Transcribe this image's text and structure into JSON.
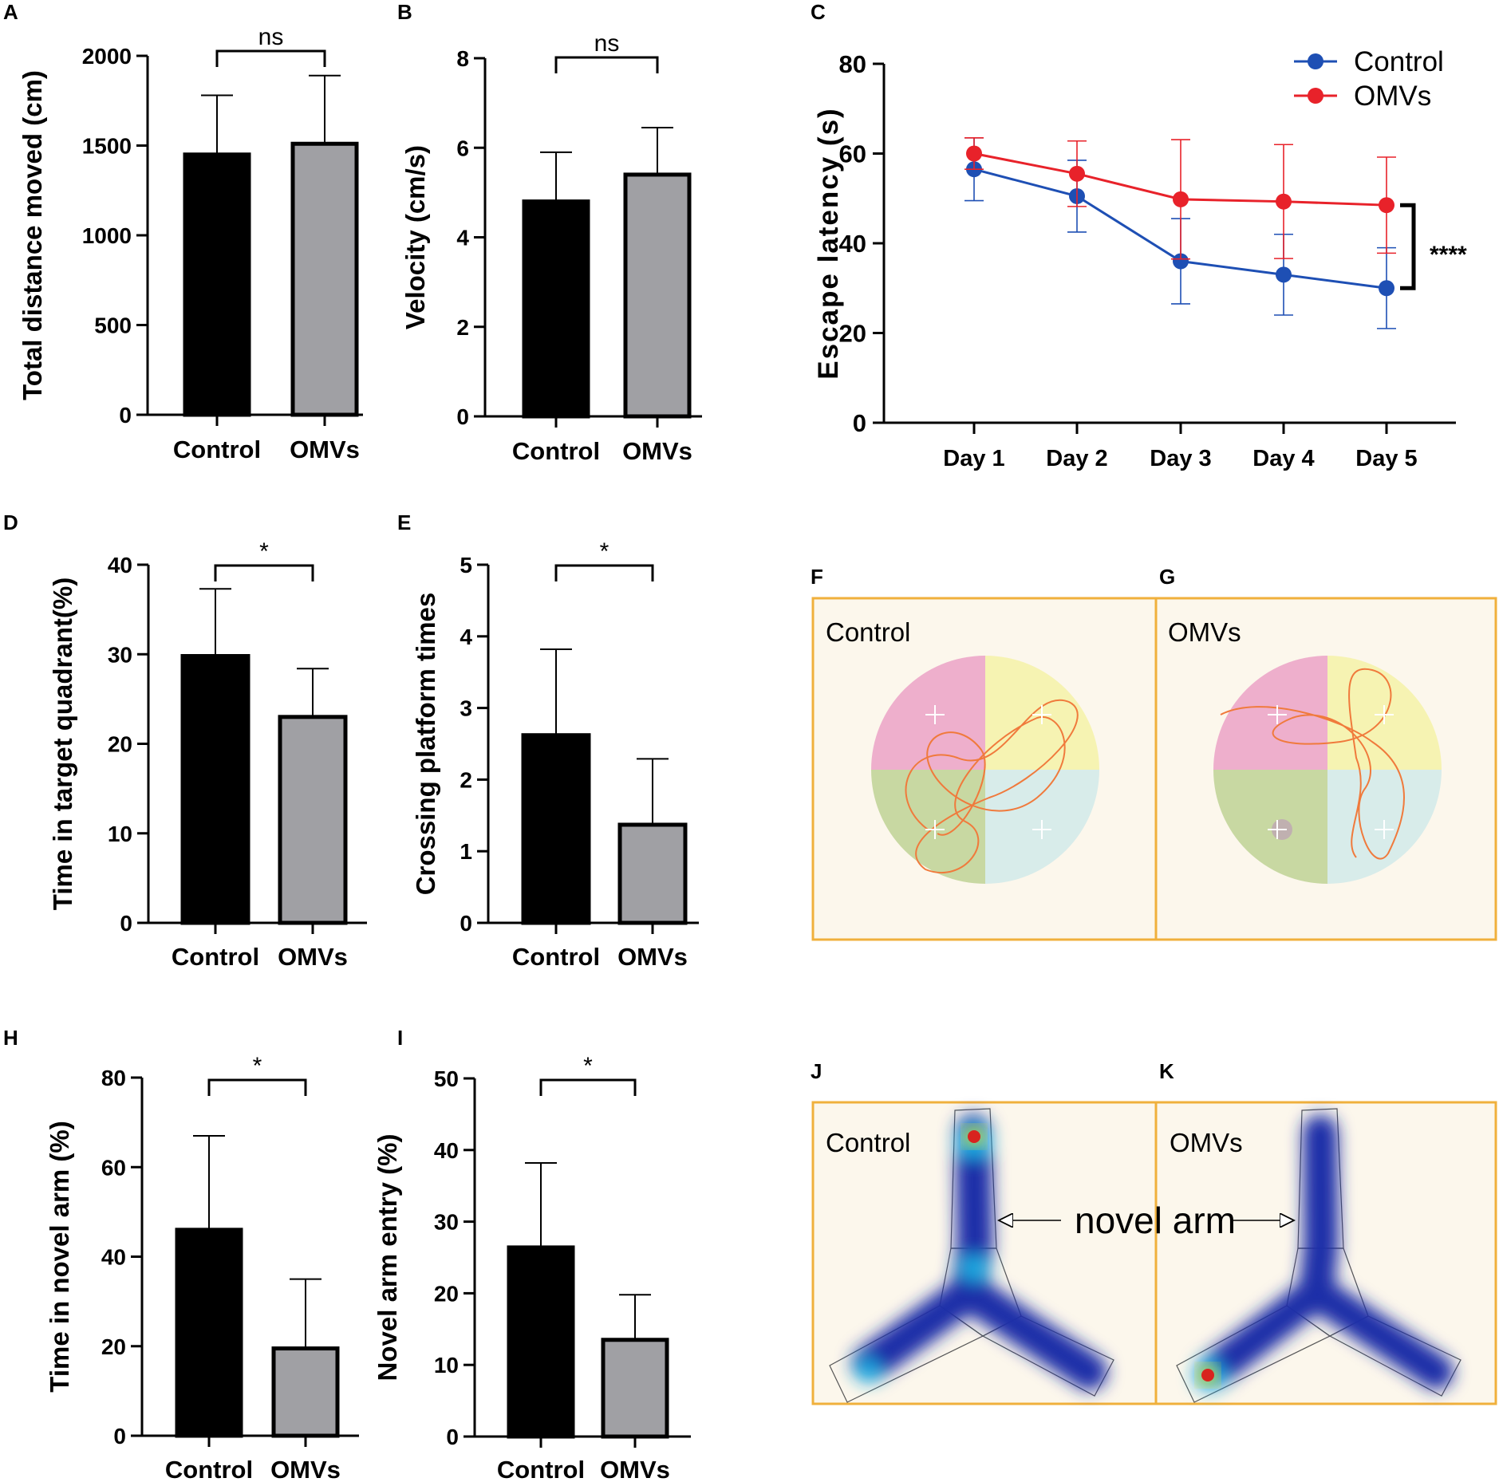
{
  "panel_labels": {
    "A": "A",
    "B": "B",
    "C": "C",
    "D": "D",
    "E": "E",
    "F": "F",
    "G": "G",
    "H": "H",
    "I": "I",
    "J": "J",
    "K": "K"
  },
  "chart_data": [
    {
      "id": "A",
      "type": "bar",
      "categories": [
        "Control",
        "OMVs"
      ],
      "values": [
        1450,
        1510
      ],
      "errors": [
        330,
        380
      ],
      "colors": [
        "#000000",
        "#a0a0a4"
      ],
      "ylabel": "Total distance moved (cm)",
      "ylim": [
        0,
        2000
      ],
      "yticks": [
        0,
        500,
        1000,
        1500,
        2000
      ],
      "significance": "ns"
    },
    {
      "id": "B",
      "type": "bar",
      "categories": [
        "Control",
        "OMVs"
      ],
      "values": [
        4.8,
        5.4
      ],
      "errors": [
        1.1,
        1.05
      ],
      "colors": [
        "#000000",
        "#a0a0a4"
      ],
      "ylabel": "Velocity (cm/s)",
      "ylim": [
        0,
        8
      ],
      "yticks": [
        0,
        2,
        4,
        6,
        8
      ],
      "significance": "ns"
    },
    {
      "id": "C",
      "type": "line",
      "x": [
        "Day 1",
        "Day 2",
        "Day 3",
        "Day 4",
        "Day 5"
      ],
      "series": [
        {
          "name": "Control",
          "color": "#1e4fb4",
          "values": [
            56.5,
            50.5,
            36,
            33,
            30
          ],
          "errors": [
            7,
            8,
            9.5,
            9,
            9
          ]
        },
        {
          "name": "OMVs",
          "color": "#e8222a",
          "values": [
            60,
            55.5,
            49.8,
            49.3,
            48.5
          ],
          "errors": [
            3.5,
            7.3,
            13.3,
            12.7,
            10.7
          ]
        }
      ],
      "ylabel": "Escape latency (s)",
      "ylim": [
        0,
        80
      ],
      "yticks": [
        0,
        20,
        40,
        60,
        80
      ],
      "significance": "****",
      "legend": "top-right"
    },
    {
      "id": "D",
      "type": "bar",
      "categories": [
        "Control",
        "OMVs"
      ],
      "values": [
        29.8,
        23
      ],
      "errors": [
        7.5,
        5.4
      ],
      "colors": [
        "#000000",
        "#a0a0a4"
      ],
      "ylabel": "Time in target quadrant(%)",
      "ylim": [
        0,
        40
      ],
      "yticks": [
        0,
        10,
        20,
        30,
        40
      ],
      "significance": "*"
    },
    {
      "id": "E",
      "type": "bar",
      "categories": [
        "Control",
        "OMVs"
      ],
      "values": [
        2.62,
        1.37
      ],
      "errors": [
        1.2,
        0.92
      ],
      "colors": [
        "#000000",
        "#a0a0a4"
      ],
      "ylabel": "Crossing platform times",
      "ylim": [
        0,
        5
      ],
      "yticks": [
        0,
        1,
        2,
        3,
        4,
        5
      ],
      "significance": "*"
    },
    {
      "id": "H",
      "type": "bar",
      "categories": [
        "Control",
        "OMVs"
      ],
      "values": [
        46,
        19.5
      ],
      "errors": [
        21,
        15.5
      ],
      "colors": [
        "#000000",
        "#a0a0a4"
      ],
      "ylabel": "Time in novel arm  (%)",
      "ylim": [
        0,
        80
      ],
      "yticks": [
        0,
        20,
        40,
        60,
        80
      ],
      "significance": "*"
    },
    {
      "id": "I",
      "type": "bar",
      "categories": [
        "Control",
        "OMVs"
      ],
      "values": [
        26.4,
        13.5
      ],
      "errors": [
        11.8,
        6.3
      ],
      "colors": [
        "#000000",
        "#a0a0a4"
      ],
      "ylabel": "Novel arm entry (%)",
      "ylim": [
        0,
        50
      ],
      "yticks": [
        0,
        10,
        20,
        30,
        40,
        50
      ],
      "significance": "*"
    }
  ],
  "images": {
    "F": {
      "title": "Control"
    },
    "G": {
      "title": "OMVs"
    },
    "J": {
      "title": "Control"
    },
    "K": {
      "title": "OMVs"
    },
    "arrow_label": "novel arm"
  }
}
